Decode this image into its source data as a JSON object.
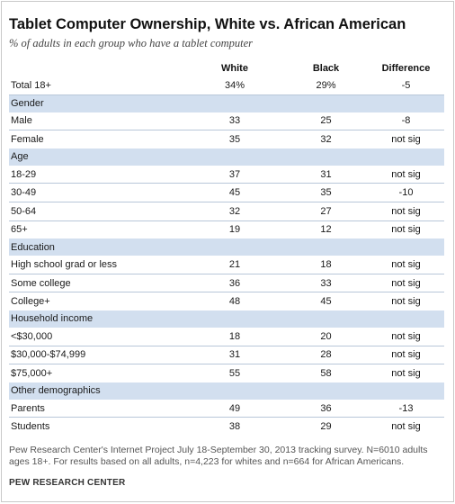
{
  "title": "Tablet Computer Ownership, White vs. African American",
  "subtitle": "% of adults in each group who have a tablet computer",
  "columns": [
    "White",
    "Black",
    "Difference"
  ],
  "total": {
    "label": "Total 18+",
    "white": "34%",
    "black": "29%",
    "diff": "-5"
  },
  "gender": {
    "heading": "Gender",
    "rows": [
      {
        "label": "Male",
        "white": "33",
        "black": "25",
        "diff": "-8"
      },
      {
        "label": "Female",
        "white": "35",
        "black": "32",
        "diff": "not sig"
      }
    ]
  },
  "age": {
    "heading": "Age",
    "rows": [
      {
        "label": "18-29",
        "white": "37",
        "black": "31",
        "diff": "not sig"
      },
      {
        "label": "30-49",
        "white": "45",
        "black": "35",
        "diff": "-10"
      },
      {
        "label": "50-64",
        "white": "32",
        "black": "27",
        "diff": "not sig"
      },
      {
        "label": "65+",
        "white": "19",
        "black": "12",
        "diff": "not sig"
      }
    ]
  },
  "education": {
    "heading": "Education",
    "rows": [
      {
        "label": "High school grad or less",
        "white": "21",
        "black": "18",
        "diff": "not sig"
      },
      {
        "label": "Some college",
        "white": "36",
        "black": "33",
        "diff": "not sig"
      },
      {
        "label": "College+",
        "white": "48",
        "black": "45",
        "diff": "not sig"
      }
    ]
  },
  "income": {
    "heading": "Household income",
    "rows": [
      {
        "label": "<$30,000",
        "white": "18",
        "black": "20",
        "diff": "not sig"
      },
      {
        "label": "$30,000-$74,999",
        "white": "31",
        "black": "28",
        "diff": "not sig"
      },
      {
        "label": "$75,000+",
        "white": "55",
        "black": "58",
        "diff": "not sig"
      }
    ]
  },
  "other": {
    "heading": "Other demographics",
    "rows": [
      {
        "label": "Parents",
        "white": "49",
        "black": "36",
        "diff": "-13"
      },
      {
        "label": "Students",
        "white": "38",
        "black": "29",
        "diff": "not sig"
      }
    ]
  },
  "note": "Pew Research Center's Internet Project July 18-September 30, 2013 tracking survey. N=6010 adults ages 18+. For results based on all adults, n=4,223 for whites and n=664 for African Americans.",
  "brand": "PEW RESEARCH CENTER",
  "colors": {
    "section_band": "#d2dfef",
    "separator": "#b8c7d9"
  }
}
